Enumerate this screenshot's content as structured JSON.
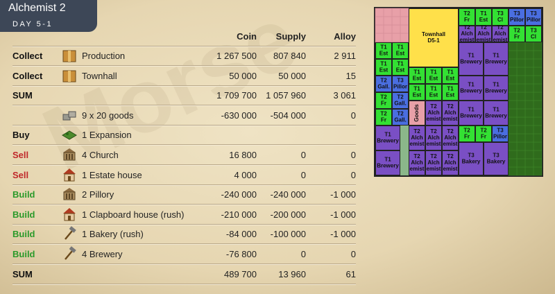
{
  "header": {
    "title": "Alchemist 2",
    "subtitle": "DAY 5-1"
  },
  "watermark": "Morse",
  "table": {
    "columns": [
      "Coin",
      "Supply",
      "Alloy"
    ],
    "rows": [
      {
        "action": "Collect",
        "label": "Production",
        "coin": "1 267 500",
        "supply": "807 840",
        "alloy": "2 911"
      },
      {
        "action": "Collect",
        "label": "Townhall",
        "coin": "50 000",
        "supply": "50 000",
        "alloy": "15"
      },
      {
        "action": "SUM",
        "coin": "1 709 700",
        "supply": "1 057 960",
        "alloy": "3 061"
      },
      {
        "label": "9 x 20 goods",
        "coin": "-630 000",
        "supply": "-504 000",
        "alloy": "0"
      },
      {
        "action": "Buy",
        "label": "1 Expansion"
      },
      {
        "action": "Sell",
        "label": "4 Church",
        "coin": "16 800",
        "supply": "0",
        "alloy": "0"
      },
      {
        "action": "Sell",
        "label": "1 Estate house",
        "coin": "4 000",
        "supply": "0",
        "alloy": "0"
      },
      {
        "action": "Build",
        "label": "2 Pillory",
        "coin": "-240 000",
        "supply": "-240 000",
        "alloy": "-1 000"
      },
      {
        "action": "Build",
        "label": "1 Clapboard house (rush)",
        "coin": "-210 000",
        "supply": "-200 000",
        "alloy": "-1 000"
      },
      {
        "action": "Build",
        "label": "1 Bakery (rush)",
        "coin": "-84 000",
        "supply": "-100 000",
        "alloy": "-1 000"
      },
      {
        "action": "Build",
        "label": "4 Brewery",
        "coin": "-76 800",
        "supply": "0",
        "alloy": "0"
      },
      {
        "action": "SUM",
        "coin": "489 700",
        "supply": "13 960",
        "alloy": "61"
      }
    ]
  },
  "map": {
    "cells": [
      [
        "Townhall",
        "D5-1"
      ],
      [
        "T2",
        "Fr"
      ],
      [
        "T1",
        "Est"
      ],
      [
        "T3",
        "Cl"
      ],
      [
        "T3",
        "Pillor"
      ],
      [
        "T3",
        "Pillor"
      ],
      [
        "T2",
        "Alch",
        "emist"
      ],
      [
        "T2",
        "Alch",
        "emist"
      ],
      [
        "T2",
        "Alch",
        "emist"
      ],
      [
        "T2",
        "Fr"
      ],
      [
        "T3",
        "Cl"
      ],
      [
        "T1",
        "Brewery"
      ],
      [
        "T1",
        "Brewery"
      ],
      [
        "T1",
        "Brewery"
      ],
      [
        "T1",
        "Brewery"
      ],
      [
        "T1",
        "Brewery"
      ],
      [
        "T1",
        "Brewery"
      ],
      [
        "T2",
        "Fr"
      ],
      [
        "T2",
        "Fr"
      ],
      [
        "T3",
        "Pillor"
      ],
      [
        "T3",
        "Bakery"
      ],
      [
        "T3",
        "Bakery"
      ],
      [
        "T1",
        "Est"
      ],
      [
        "T1",
        "Est"
      ],
      [
        "T1",
        "Est"
      ],
      [
        "T1",
        "Est"
      ],
      [
        "T2",
        "Gall."
      ],
      [
        "T3",
        "Pillor"
      ],
      [
        "T2",
        "Fr"
      ],
      [
        "T2",
        "Gall."
      ],
      [
        "T2",
        "Fr"
      ],
      [
        "T2",
        "Gall."
      ],
      [
        "T1",
        "Brewery"
      ],
      [
        "T1",
        "Brewery"
      ],
      [
        "T1",
        "Est"
      ],
      [
        "T1",
        "Est"
      ],
      [
        "T1",
        "Est"
      ],
      [
        "T1",
        "Est"
      ],
      [
        "T1",
        "Est"
      ],
      [
        "T1",
        "Est"
      ],
      [
        "Goods"
      ],
      [
        "T2",
        "Alch",
        "emist"
      ],
      [
        "T2",
        "Alch",
        "emist"
      ],
      [
        "T2",
        "Alch",
        "emist"
      ],
      [
        "T2",
        "Alch",
        "emist"
      ],
      [
        "T2",
        "Alch",
        "emist"
      ],
      [
        "T2",
        "Alch",
        "emist"
      ],
      [
        "T2",
        "Alch",
        "emist"
      ],
      [
        "T2",
        "Alch",
        "emist"
      ]
    ]
  }
}
